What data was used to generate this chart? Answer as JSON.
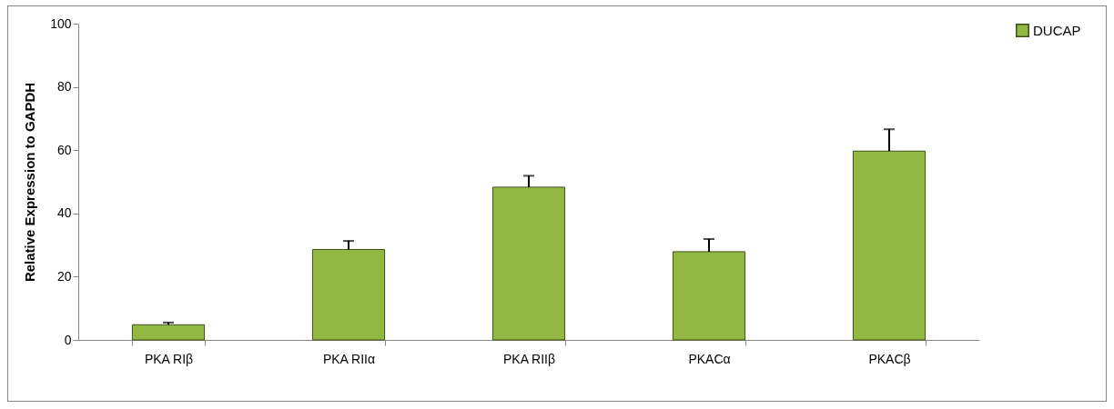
{
  "chart_data": {
    "type": "bar",
    "ylabel": "Relative Expression to GAPDH",
    "categories": [
      "PKA RIβ",
      "PKA RIIα",
      "PKA RIIβ",
      "PKACα",
      "PKACβ"
    ],
    "series": [
      {
        "name": "DUCAP",
        "color": "#92b843",
        "values": [
          4.8,
          28.6,
          48.3,
          27.9,
          59.7
        ],
        "errors": [
          0.7,
          2.7,
          3.6,
          4.0,
          6.9
        ]
      }
    ],
    "ylim": [
      0,
      100
    ],
    "yticks": [
      0,
      20,
      40,
      60,
      80,
      100
    ],
    "grid": false,
    "legend": "right"
  }
}
